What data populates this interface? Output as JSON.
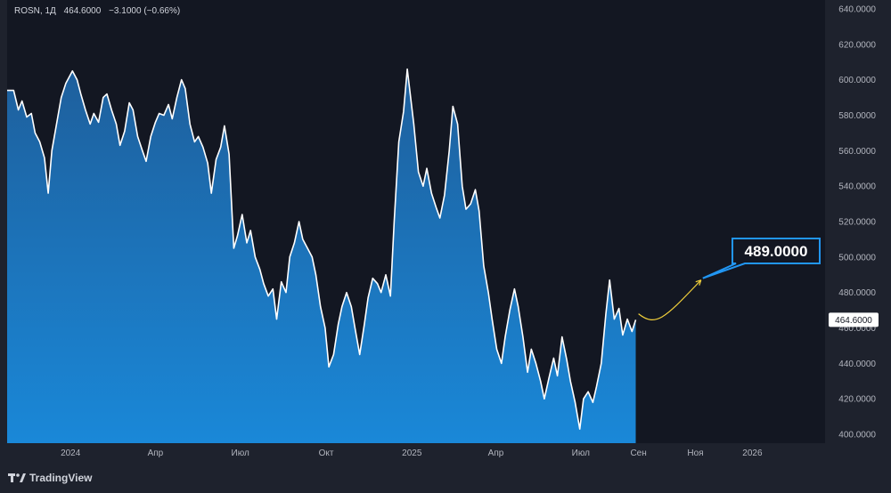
{
  "legend": {
    "symbol": "ROSN",
    "interval": "1Д",
    "last": "464.6000",
    "change": "−3.1000",
    "change_pct": "(−0.66%)"
  },
  "brand": {
    "name": "TradingView"
  },
  "colors": {
    "background": "#131722",
    "panel": "#1e222d",
    "area_top": "#1f6bb0",
    "area_bottom": "#1a86d6",
    "line": "#ffffff",
    "forecast": "#f2d03b",
    "callout_border": "#2196f3",
    "axis_text": "#b2b5be"
  },
  "chart_data": {
    "type": "area",
    "title": "",
    "xlabel": "",
    "ylabel": "",
    "ylim": [
      395,
      645
    ],
    "xlim": [
      "2023-10-25",
      "2026-03-20"
    ],
    "y_ticks": [
      "640.0000",
      "620.0000",
      "600.0000",
      "580.0000",
      "560.0000",
      "540.0000",
      "520.0000",
      "500.0000",
      "480.0000",
      "460.0000",
      "440.0000",
      "420.0000",
      "400.0000"
    ],
    "y_tick_values": [
      640,
      620,
      600,
      580,
      560,
      540,
      520,
      500,
      480,
      460,
      440,
      420,
      400
    ],
    "x_tick_labels": [
      "2024",
      "Апр",
      "Июл",
      "Окт",
      "2025",
      "Апр",
      "Июл",
      "Сен",
      "Ноя",
      "2026"
    ],
    "x_tick_dates": [
      "2024-01-01",
      "2024-04-01",
      "2024-07-01",
      "2024-10-01",
      "2025-01-01",
      "2025-04-01",
      "2025-07-01",
      "2025-09-01",
      "2025-11-01",
      "2026-01-01"
    ],
    "series": [
      {
        "values": [
          [
            "2023-11-01",
            594
          ],
          [
            "2023-11-06",
            583
          ],
          [
            "2023-11-10",
            588
          ],
          [
            "2023-11-15",
            579
          ],
          [
            "2023-11-20",
            581
          ],
          [
            "2023-11-24",
            570
          ],
          [
            "2023-11-29",
            565
          ],
          [
            "2023-12-04",
            556
          ],
          [
            "2023-12-08",
            536
          ],
          [
            "2023-12-12",
            560
          ],
          [
            "2023-12-18",
            578
          ],
          [
            "2023-12-22",
            590
          ],
          [
            "2023-12-27",
            598
          ],
          [
            "2024-01-03",
            605
          ],
          [
            "2024-01-08",
            600
          ],
          [
            "2024-01-12",
            592
          ],
          [
            "2024-01-17",
            583
          ],
          [
            "2024-01-22",
            575
          ],
          [
            "2024-01-26",
            581
          ],
          [
            "2024-01-31",
            576
          ],
          [
            "2024-02-05",
            590
          ],
          [
            "2024-02-09",
            592
          ],
          [
            "2024-02-14",
            583
          ],
          [
            "2024-02-19",
            575
          ],
          [
            "2024-02-23",
            563
          ],
          [
            "2024-02-28",
            571
          ],
          [
            "2024-03-04",
            587
          ],
          [
            "2024-03-08",
            583
          ],
          [
            "2024-03-13",
            568
          ],
          [
            "2024-03-18",
            560
          ],
          [
            "2024-03-22",
            554
          ],
          [
            "2024-03-27",
            568
          ],
          [
            "2024-04-01",
            576
          ],
          [
            "2024-04-05",
            581
          ],
          [
            "2024-04-10",
            580
          ],
          [
            "2024-04-15",
            586
          ],
          [
            "2024-04-19",
            578
          ],
          [
            "2024-04-24",
            590
          ],
          [
            "2024-04-29",
            600
          ],
          [
            "2024-05-03",
            595
          ],
          [
            "2024-05-08",
            575
          ],
          [
            "2024-05-13",
            565
          ],
          [
            "2024-05-17",
            568
          ],
          [
            "2024-05-22",
            562
          ],
          [
            "2024-05-27",
            553
          ],
          [
            "2024-05-31",
            536
          ],
          [
            "2024-06-05",
            555
          ],
          [
            "2024-06-10",
            562
          ],
          [
            "2024-06-14",
            574
          ],
          [
            "2024-06-19",
            558
          ],
          [
            "2024-06-24",
            505
          ],
          [
            "2024-06-28",
            512
          ],
          [
            "2024-07-03",
            524
          ],
          [
            "2024-07-08",
            508
          ],
          [
            "2024-07-12",
            515
          ],
          [
            "2024-07-17",
            500
          ],
          [
            "2024-07-22",
            493
          ],
          [
            "2024-07-26",
            485
          ],
          [
            "2024-07-31",
            478
          ],
          [
            "2024-08-05",
            482
          ],
          [
            "2024-08-09",
            465
          ],
          [
            "2024-08-14",
            486
          ],
          [
            "2024-08-19",
            480
          ],
          [
            "2024-08-23",
            500
          ],
          [
            "2024-08-28",
            508
          ],
          [
            "2024-09-02",
            520
          ],
          [
            "2024-09-06",
            510
          ],
          [
            "2024-09-11",
            505
          ],
          [
            "2024-09-16",
            500
          ],
          [
            "2024-09-20",
            490
          ],
          [
            "2024-09-25",
            472
          ],
          [
            "2024-09-30",
            460
          ],
          [
            "2024-10-04",
            438
          ],
          [
            "2024-10-09",
            445
          ],
          [
            "2024-10-14",
            462
          ],
          [
            "2024-10-18",
            472
          ],
          [
            "2024-10-23",
            480
          ],
          [
            "2024-10-28",
            472
          ],
          [
            "2024-11-01",
            460
          ],
          [
            "2024-11-06",
            445
          ],
          [
            "2024-11-11",
            462
          ],
          [
            "2024-11-15",
            477
          ],
          [
            "2024-11-20",
            488
          ],
          [
            "2024-11-25",
            485
          ],
          [
            "2024-11-29",
            480
          ],
          [
            "2024-12-04",
            490
          ],
          [
            "2024-12-09",
            478
          ],
          [
            "2024-12-13",
            520
          ],
          [
            "2024-12-18",
            565
          ],
          [
            "2024-12-23",
            582
          ],
          [
            "2024-12-27",
            606
          ],
          [
            "2025-01-03",
            575
          ],
          [
            "2025-01-08",
            548
          ],
          [
            "2025-01-13",
            540
          ],
          [
            "2025-01-17",
            550
          ],
          [
            "2025-01-22",
            536
          ],
          [
            "2025-01-27",
            528
          ],
          [
            "2025-01-31",
            522
          ],
          [
            "2025-02-05",
            535
          ],
          [
            "2025-02-10",
            560
          ],
          [
            "2025-02-14",
            585
          ],
          [
            "2025-02-19",
            575
          ],
          [
            "2025-02-24",
            540
          ],
          [
            "2025-02-28",
            527
          ],
          [
            "2025-03-05",
            530
          ],
          [
            "2025-03-10",
            538
          ],
          [
            "2025-03-14",
            526
          ],
          [
            "2025-03-19",
            495
          ],
          [
            "2025-03-24",
            480
          ],
          [
            "2025-03-28",
            465
          ],
          [
            "2025-04-02",
            448
          ],
          [
            "2025-04-07",
            440
          ],
          [
            "2025-04-11",
            455
          ],
          [
            "2025-04-16",
            470
          ],
          [
            "2025-04-21",
            482
          ],
          [
            "2025-04-25",
            472
          ],
          [
            "2025-04-30",
            455
          ],
          [
            "2025-05-05",
            435
          ],
          [
            "2025-05-09",
            448
          ],
          [
            "2025-05-14",
            440
          ],
          [
            "2025-05-19",
            430
          ],
          [
            "2025-05-23",
            420
          ],
          [
            "2025-05-28",
            432
          ],
          [
            "2025-06-02",
            443
          ],
          [
            "2025-06-06",
            433
          ],
          [
            "2025-06-11",
            455
          ],
          [
            "2025-06-16",
            442
          ],
          [
            "2025-06-20",
            430
          ],
          [
            "2025-06-25",
            418
          ],
          [
            "2025-06-30",
            403
          ],
          [
            "2025-07-04",
            420
          ],
          [
            "2025-07-09",
            424
          ],
          [
            "2025-07-14",
            418
          ],
          [
            "2025-07-18",
            427
          ],
          [
            "2025-07-23",
            440
          ],
          [
            "2025-07-28",
            468
          ],
          [
            "2025-08-01",
            487
          ],
          [
            "2025-08-06",
            465
          ],
          [
            "2025-08-11",
            471
          ],
          [
            "2025-08-15",
            456
          ],
          [
            "2025-08-20",
            465
          ],
          [
            "2025-08-25",
            458
          ],
          [
            "2025-08-29",
            464.6
          ]
        ]
      }
    ],
    "forecast": {
      "value": 489.0,
      "label": "489.0000",
      "start": [
        "2025-09-01",
        464
      ],
      "end": [
        "2025-11-07",
        487
      ]
    },
    "last_value_label": "464.6000",
    "grid": false,
    "legend": "top-left"
  }
}
